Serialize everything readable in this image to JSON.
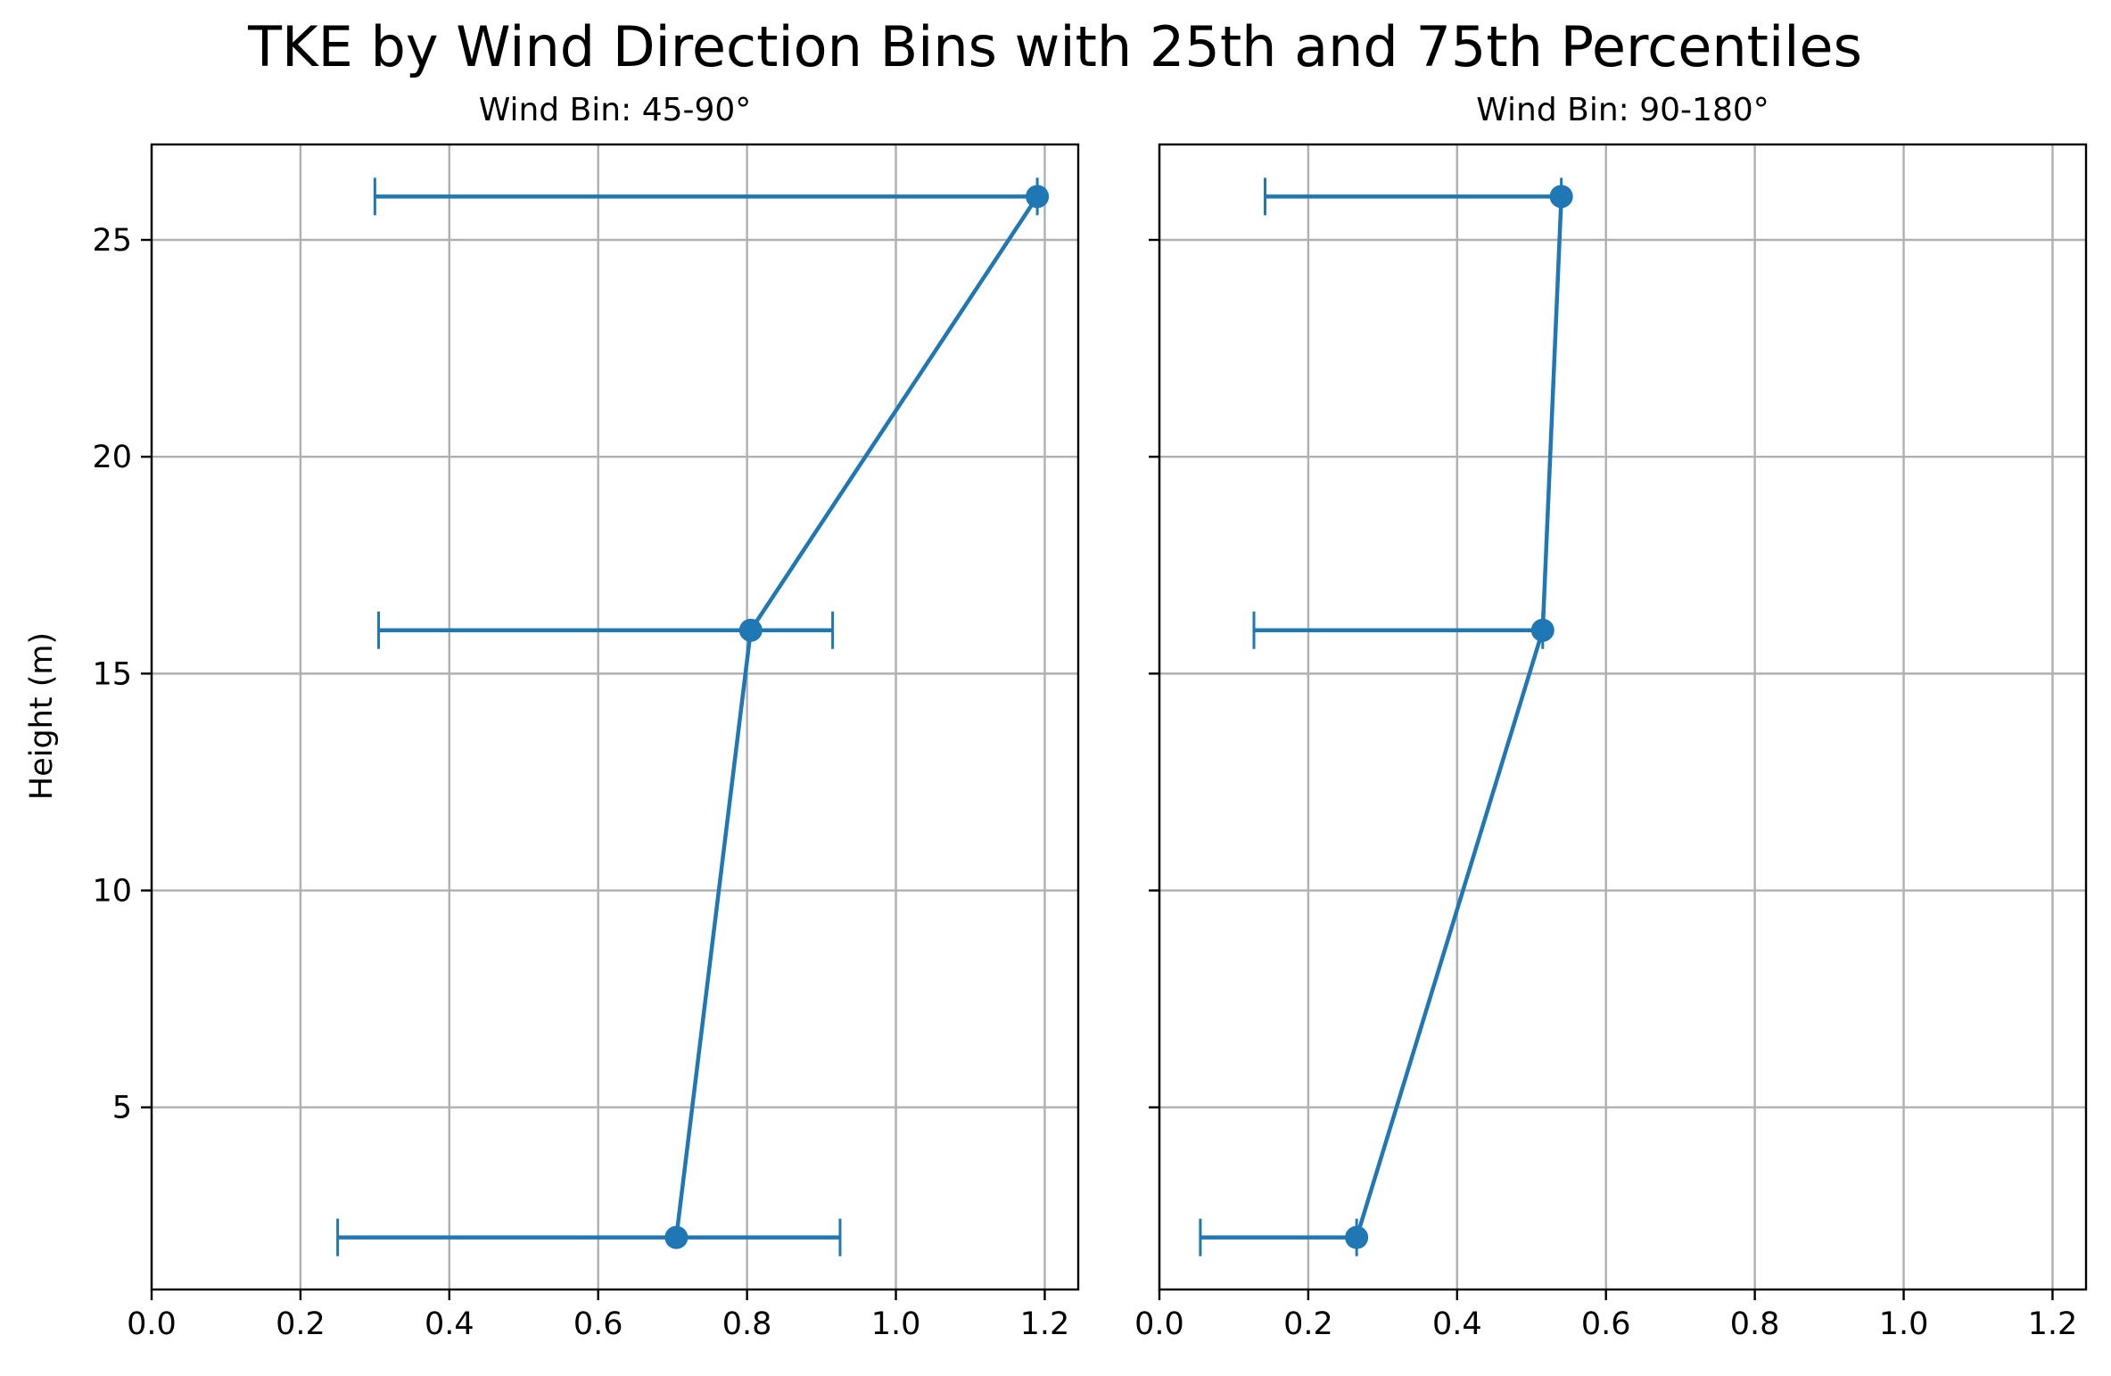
{
  "chart_data": {
    "type": "line",
    "title": "TKE by Wind Direction Bins with 25th and 75th Percentiles",
    "ylabel": "Height (m)",
    "xlim": [
      0,
      1.245
    ],
    "ylim": [
      0.8,
      27.2
    ],
    "xticks": [
      "0.0",
      "0.2",
      "0.4",
      "0.6",
      "0.8",
      "1.0",
      "1.2"
    ],
    "xtick_values": [
      0,
      0.2,
      0.4,
      0.6,
      0.8,
      1.0,
      1.2
    ],
    "yticks": [
      "5",
      "10",
      "15",
      "20",
      "25"
    ],
    "ytick_values": [
      5,
      10,
      15,
      20,
      25
    ],
    "grid": true,
    "sharey": true,
    "color": "#1f77b4",
    "panels": [
      {
        "title": "Wind Bin: 45-90°",
        "points": [
          {
            "height": 2,
            "tke": 0.705,
            "p25": 0.25,
            "p75": 0.925
          },
          {
            "height": 16,
            "tke": 0.805,
            "p25": 0.305,
            "p75": 0.915
          },
          {
            "height": 26,
            "tke": 1.19,
            "p25": 0.3,
            "p75": 1.19
          }
        ]
      },
      {
        "title": "Wind Bin: 90-180°",
        "points": [
          {
            "height": 2,
            "tke": 0.265,
            "p25": 0.055,
            "p75": 0.265
          },
          {
            "height": 16,
            "tke": 0.515,
            "p25": 0.127,
            "p75": 0.515
          },
          {
            "height": 26,
            "tke": 0.54,
            "p25": 0.142,
            "p75": 0.54
          }
        ]
      }
    ]
  }
}
